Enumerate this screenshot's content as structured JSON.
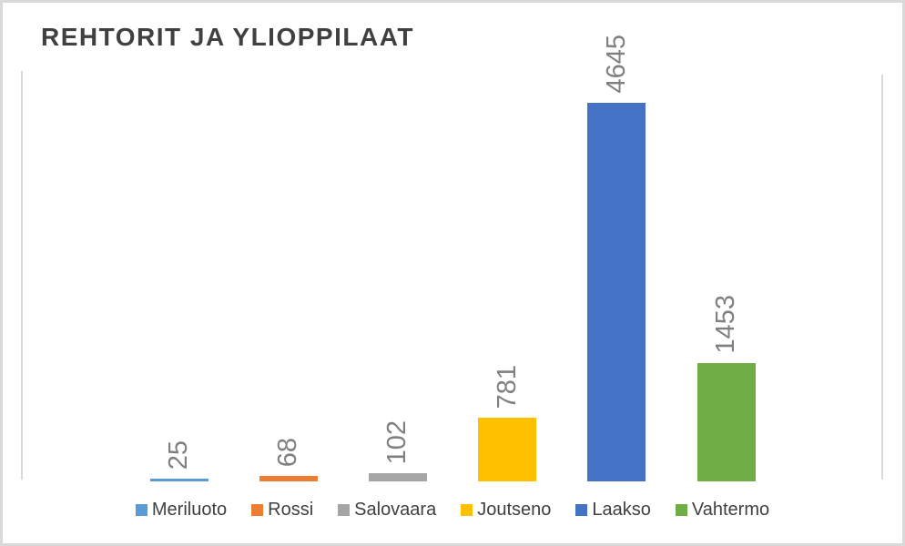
{
  "title": "REHTORIT JA YLIOPPILAAT",
  "chart_data": {
    "type": "bar",
    "title": "REHTORIT JA YLIOPPILAAT",
    "categories": [
      "Meriluoto",
      "Rossi",
      "Salovaara",
      "Joutseno",
      "Laakso",
      "Vahtermo"
    ],
    "values": [
      25,
      68,
      102,
      781,
      4645,
      1453
    ],
    "data_labels": [
      "25",
      "68",
      "102",
      "781",
      "4645",
      "1453"
    ],
    "series_colors": [
      "#5B9BD5",
      "#ED7D31",
      "#A5A5A5",
      "#FFC000",
      "#4472C4",
      "#70AD47"
    ],
    "legend_entries": [
      "Meriluoto",
      "Rossi",
      "Salovaara",
      "Joutseno",
      "Laakso",
      "Vahtermo"
    ],
    "legend_position": "bottom",
    "grid": false,
    "xlabel": "",
    "ylabel": "",
    "ylim": [
      0,
      5000
    ]
  },
  "colors": {
    "background": "#FFFFFF",
    "frame_border": "#D9D9D9",
    "axis_line": "#D9D9D9",
    "title_text": "#404040",
    "data_label_text": "#7F7F7F",
    "legend_text": "#404040"
  }
}
